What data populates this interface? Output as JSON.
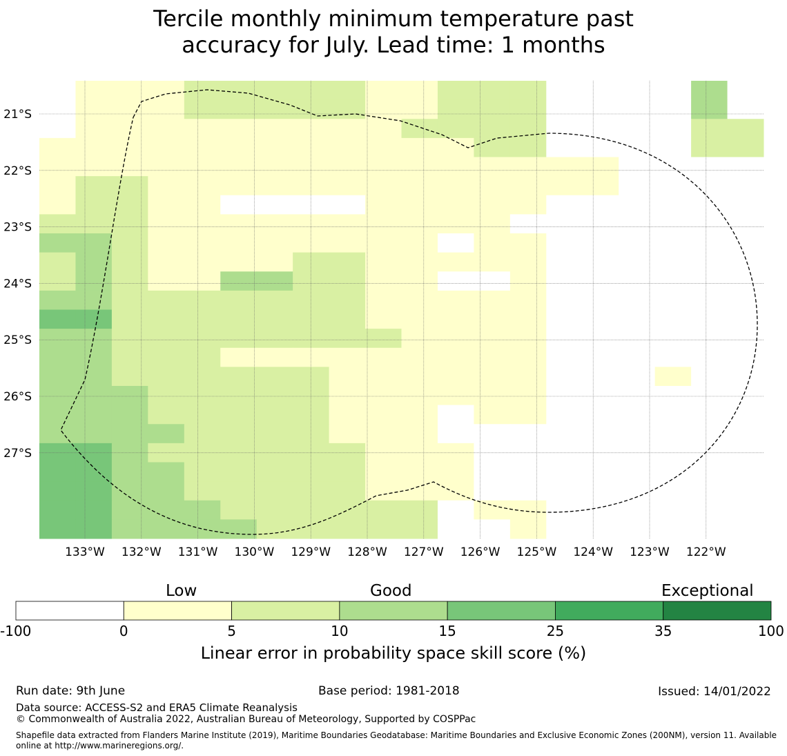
{
  "title_line1": "Tercile monthly minimum temperature past",
  "title_line2": "accuracy for July. Lead time: 1 months",
  "map": {
    "lon_labels": [
      "133°W",
      "132°W",
      "131°W",
      "130°W",
      "129°W",
      "128°W",
      "127°W",
      "126°W",
      "125°W",
      "124°W",
      "123°W",
      "122°W"
    ],
    "lat_labels": [
      "21°S",
      "22°S",
      "23°S",
      "24°S",
      "25°S",
      "26°S",
      "27°S"
    ],
    "grid_rows": [
      "01112222211222000030",
      "01112222211222000030",
      "01111111112222000022",
      "11111111111122000022",
      "11111111111111110000",
      "12211111111111110000",
      "12211000011111000000",
      "22211111111110000000",
      "33211111111011000000",
      "23211112211111000000",
      "23211332211001000000",
      "33222222211111000000",
      "44222222211111000000",
      "33222222221111000000",
      "33222111111111000000",
      "33222222111111000100",
      "33322222111111000000",
      "33322222111011000000",
      "33332222111000000000",
      "44322222211100000000",
      "44332222211100000000",
      "44332222211100000000",
      "44333222222011000000",
      "44333322222001000000"
    ]
  },
  "colorbar": {
    "categories": [
      "Low",
      "Good",
      "Exceptional"
    ],
    "ticks": [
      "-100",
      "0",
      "5",
      "10",
      "15",
      "25",
      "35",
      "100"
    ],
    "colors": [
      "#ffffff",
      "#ffffcc",
      "#d9f0a3",
      "#addd8e",
      "#78c679",
      "#41ab5d",
      "#238443"
    ],
    "label": "Linear error in probability space skill score (%)"
  },
  "footer": {
    "run_date": "Run date: 9th June",
    "base_period": "Base period: 1981-2018",
    "issued": "Issued: 14/01/2022",
    "data_source": "Data source: ACCESS-S2 and ERA5 Climate Reanalysis",
    "copyright": "© Commonwealth of Australia 2022, Australian Bureau of Meteorology, Supported by COSPPac",
    "shapefile": "Shapefile data extracted from Flanders Marine Institute (2019), Maritime Boundaries Geodatabase: Maritime Boundaries and Exclusive Economic Zones (200NM), version 11. Available online at http://www.marineregions.org/."
  }
}
